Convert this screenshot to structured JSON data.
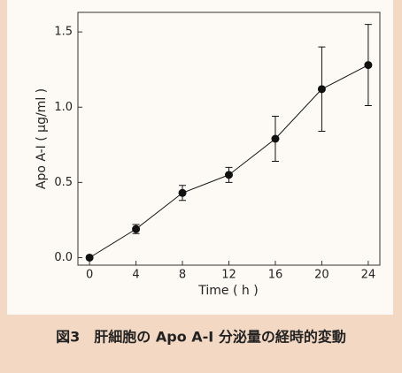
{
  "chart_data": {
    "type": "line",
    "x_label": "Time ( h )",
    "y_label": "Apo A-I ( μg/ml )",
    "caption": "図3　肝細胞の Apo A-I 分泌量の経時的変動",
    "x": [
      0,
      4,
      8,
      12,
      16,
      20,
      24
    ],
    "series": [
      {
        "color": "#111111",
        "values": [
          0,
          0.19,
          0.43,
          0.55,
          0.79,
          1.12,
          1.28
        ],
        "errors": [
          0.01,
          0.03,
          0.05,
          0.05,
          0.15,
          0.28,
          0.27
        ]
      }
    ],
    "xlim": [
      -1,
      25
    ],
    "xticks": [
      0,
      4,
      8,
      12,
      16,
      20,
      24
    ],
    "ylim": [
      -0.05,
      1.63
    ],
    "yticks": [
      {
        "value": 0,
        "label": "0.0"
      },
      0.5,
      {
        "value": 1,
        "label": "1.0"
      },
      1.5
    ]
  }
}
